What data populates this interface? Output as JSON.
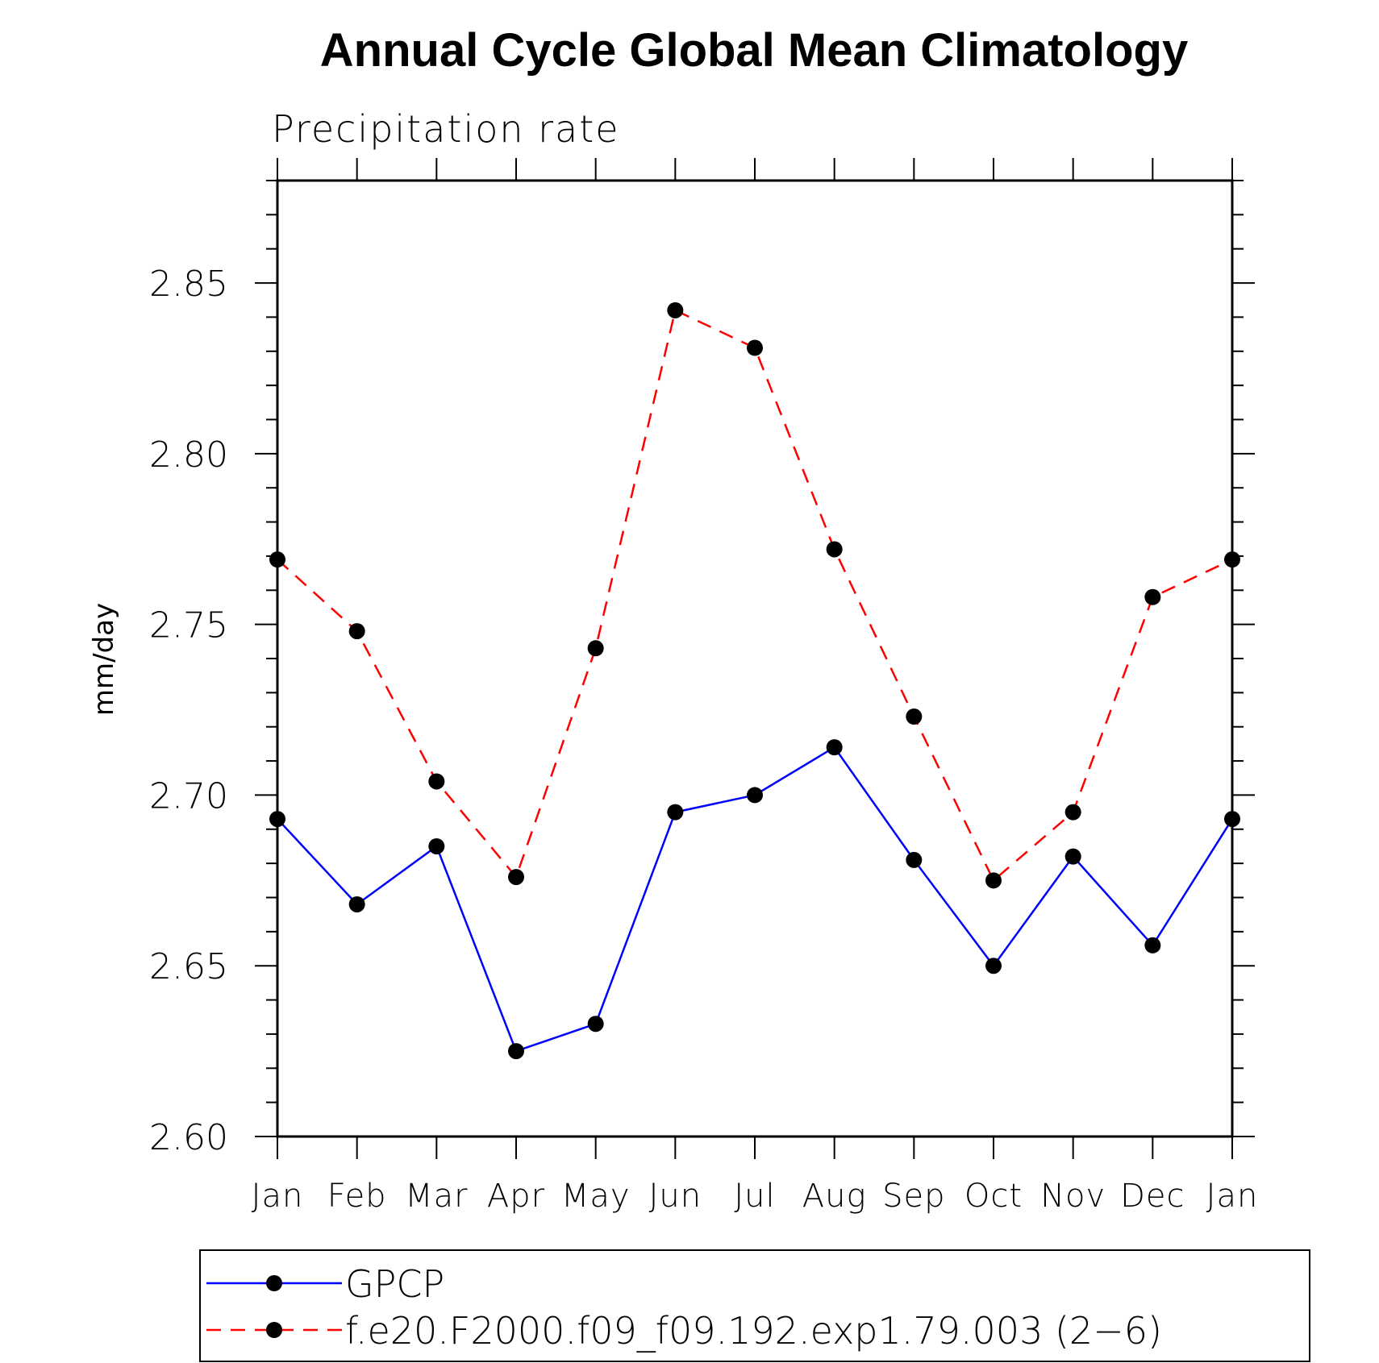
{
  "chart_data": {
    "type": "line",
    "title": "Annual Cycle Global Mean Climatology",
    "subtitle": "Precipitation rate",
    "ylabel": "mm/day",
    "xlabel": "",
    "ylim": [
      2.6,
      2.88
    ],
    "yticks": [
      "2.60",
      "2.65",
      "2.70",
      "2.75",
      "2.80",
      "2.85"
    ],
    "categories": [
      "Jan",
      "Feb",
      "Mar",
      "Apr",
      "May",
      "Jun",
      "Jul",
      "Aug",
      "Sep",
      "Oct",
      "Nov",
      "Dec",
      "Jan"
    ],
    "series": [
      {
        "name": "GPCP",
        "color": "#0000ff",
        "dash": "solid",
        "values": [
          2.693,
          2.668,
          2.685,
          2.625,
          2.633,
          2.695,
          2.7,
          2.714,
          2.681,
          2.65,
          2.682,
          2.656,
          2.693
        ]
      },
      {
        "name": "f.e20.F2000.f09_f09.192.exp1.79.003 (2−6)",
        "color": "#ff0000",
        "dash": "dashed",
        "values": [
          2.769,
          2.748,
          2.704,
          2.676,
          2.743,
          2.842,
          2.831,
          2.772,
          2.723,
          2.675,
          2.695,
          2.758,
          2.769
        ]
      }
    ],
    "marker_color": "#000000",
    "grid": false,
    "legend_position": "bottom"
  }
}
